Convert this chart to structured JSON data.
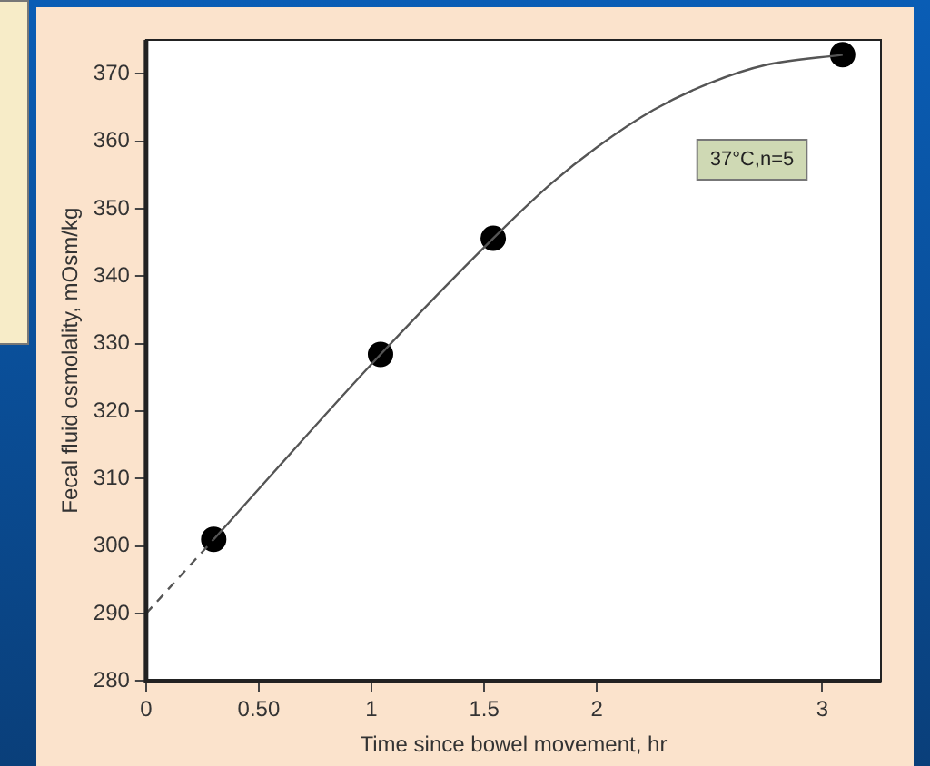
{
  "chart_data": {
    "type": "scatter",
    "xlabel": "Time since bowel movement, hr",
    "ylabel": "Fecal fluid osmolality, mOsm/kg",
    "xlim": [
      0,
      3.26
    ],
    "ylim": [
      280,
      375
    ],
    "xticks": [
      0,
      {
        "value": 0.5,
        "label": "0.50"
      },
      1,
      1.5,
      2,
      3
    ],
    "yticks": [
      280,
      290,
      300,
      310,
      320,
      330,
      340,
      350,
      360,
      370
    ],
    "series": [
      {
        "type": "line",
        "color": "#555555",
        "line_style": "solid",
        "marker": "none",
        "x": [
          0.3,
          1.04,
          1.54,
          1.8,
          2.0,
          2.25,
          2.5,
          2.75,
          3.09
        ],
        "values": [
          301,
          328.4,
          345.6,
          353.8,
          359.1,
          364.6,
          368.6,
          371.3,
          372.8
        ]
      },
      {
        "type": "line",
        "color": "#555555",
        "line_style": "dashed",
        "marker": "none",
        "x": [
          0,
          0.3
        ],
        "values": [
          290,
          301
        ]
      },
      {
        "type": "scatter",
        "color": "#000000",
        "marker": "circle",
        "x": [
          0.3,
          1.04,
          1.54,
          3.09
        ],
        "values": [
          301,
          328.4,
          345.6,
          372.8
        ]
      }
    ],
    "annotations": [
      "37°C,n=5"
    ]
  }
}
